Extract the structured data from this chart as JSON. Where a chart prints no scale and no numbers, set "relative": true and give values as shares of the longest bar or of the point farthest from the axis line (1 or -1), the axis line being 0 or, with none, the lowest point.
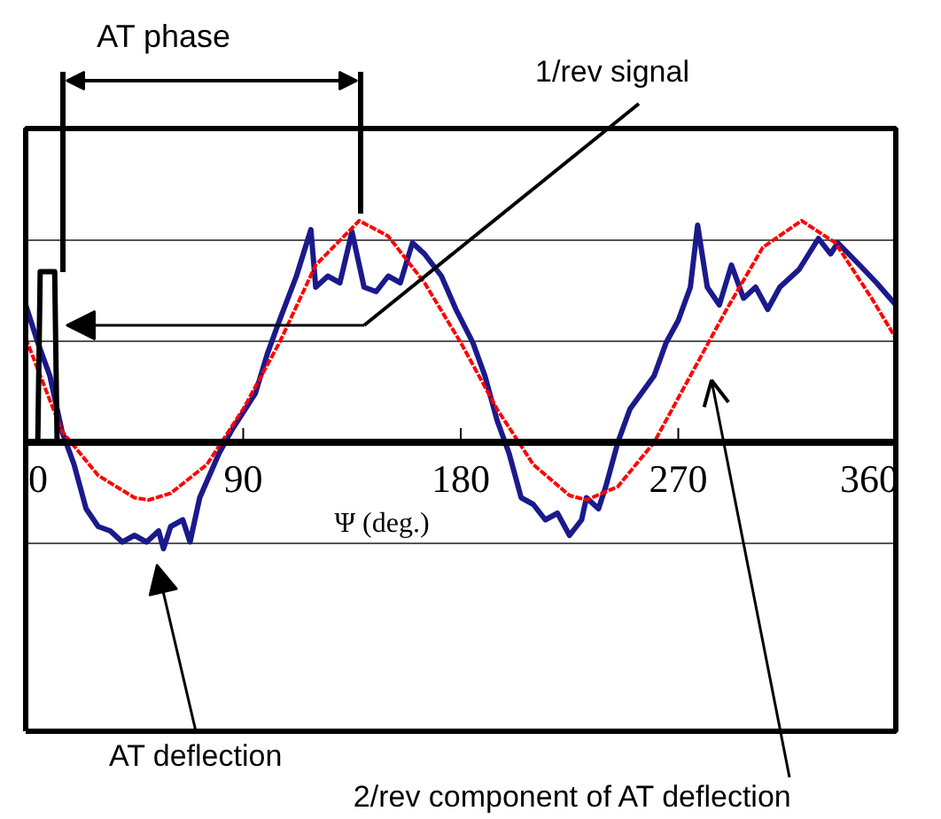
{
  "chart_data": {
    "type": "line",
    "relative": true,
    "xlabel": "Ψ (deg.)",
    "xlim": [
      0,
      360
    ],
    "xticks": [
      0,
      90,
      180,
      270,
      360
    ],
    "grid": "y",
    "series": [
      {
        "name": "AT deflection",
        "color": "#1a1a8c",
        "line_style": "solid",
        "x": [
          0,
          5,
          10,
          15,
          20,
          25,
          30,
          35,
          40,
          45,
          50,
          55,
          57,
          60,
          65,
          68,
          72,
          80,
          85,
          95,
          100,
          105,
          112,
          118,
          120,
          125,
          130,
          135,
          140,
          145,
          150,
          155,
          160,
          165,
          172,
          178,
          185,
          190,
          195,
          200,
          205,
          210,
          215,
          220,
          225,
          230,
          232,
          237,
          240,
          245,
          250,
          260,
          265,
          270,
          275,
          278,
          282,
          287,
          292,
          297,
          302,
          307,
          312,
          320,
          328,
          333,
          336,
          345,
          352,
          360
        ],
        "values": [
          0.62,
          0.45,
          0.3,
          0.05,
          -0.1,
          -0.3,
          -0.38,
          -0.4,
          -0.45,
          -0.42,
          -0.45,
          -0.4,
          -0.48,
          -0.38,
          -0.35,
          -0.45,
          -0.25,
          -0.05,
          0.05,
          0.22,
          0.4,
          0.55,
          0.75,
          0.96,
          0.7,
          0.75,
          0.72,
          0.95,
          0.7,
          0.68,
          0.75,
          0.72,
          0.9,
          0.85,
          0.75,
          0.6,
          0.45,
          0.3,
          0.1,
          -0.05,
          -0.25,
          -0.28,
          -0.35,
          -0.32,
          -0.42,
          -0.35,
          -0.25,
          -0.3,
          -0.2,
          0.0,
          0.15,
          0.3,
          0.45,
          0.55,
          0.7,
          0.98,
          0.7,
          0.62,
          0.8,
          0.65,
          0.7,
          0.6,
          0.7,
          0.78,
          0.92,
          0.85,
          0.9,
          0.8,
          0.72,
          0.62
        ]
      },
      {
        "name": "2/rev component of AT deflection",
        "color": "#ff0000",
        "line_style": "dashed",
        "x": [
          0,
          15,
          30,
          45,
          51,
          60,
          75,
          90,
          105,
          120,
          138,
          150,
          165,
          180,
          195,
          210,
          225,
          232,
          245,
          260,
          275,
          290,
          305,
          321,
          335,
          350,
          360
        ],
        "values": [
          0.47,
          0.05,
          -0.15,
          -0.25,
          -0.26,
          -0.23,
          -0.1,
          0.15,
          0.45,
          0.8,
          1.0,
          0.93,
          0.72,
          0.45,
          0.15,
          -0.1,
          -0.24,
          -0.26,
          -0.2,
          0.0,
          0.3,
          0.6,
          0.88,
          1.0,
          0.9,
          0.65,
          0.47
        ]
      },
      {
        "name": "1/rev signal",
        "color": "#000000",
        "line_style": "solid",
        "x": [
          0,
          5,
          6,
          12,
          13,
          360
        ],
        "values": [
          0,
          0,
          0.77,
          0.77,
          0,
          0
        ]
      }
    ],
    "annotations": [
      "AT phase"
    ]
  }
}
